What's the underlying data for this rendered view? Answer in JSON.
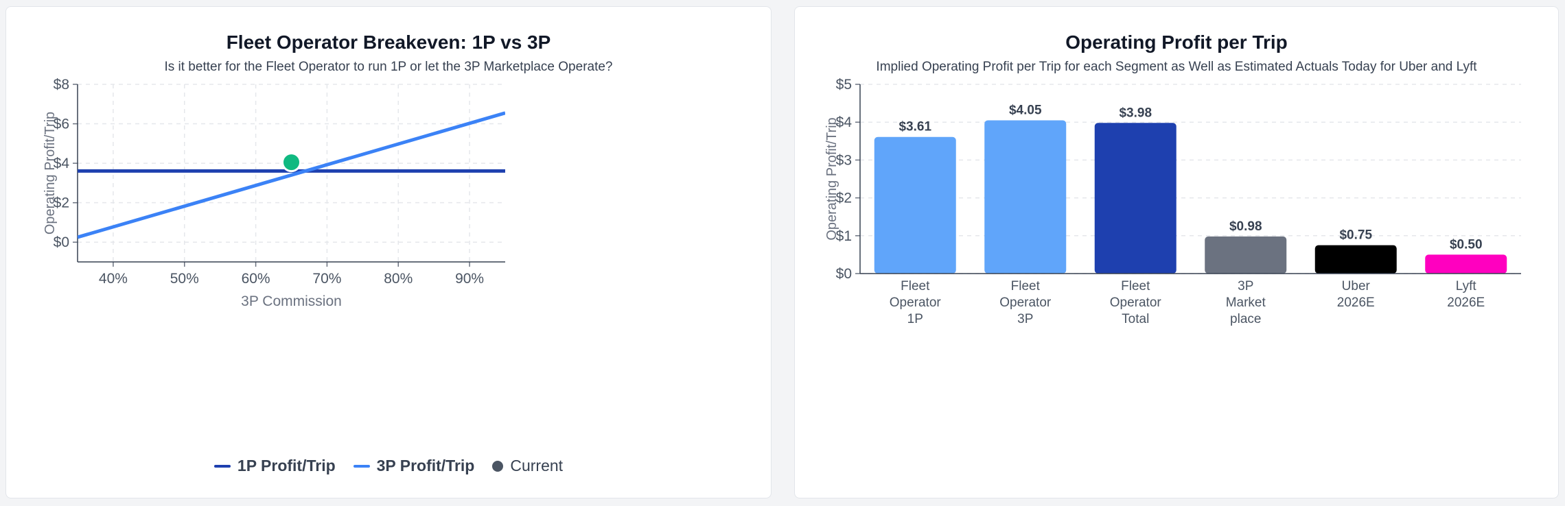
{
  "colors": {
    "one_p": "#1e40af",
    "three_p": "#3b82f6",
    "current": "#10b981",
    "current_legend": "#4b5563",
    "bar_fleet_1p": "#60a5fa",
    "bar_fleet_3p": "#60a5fa",
    "bar_fleet_total": "#1e40af",
    "bar_marketplace": "#6b7280",
    "bar_uber": "#000000",
    "bar_lyft": "#ff00bf"
  },
  "left_panel": {
    "title": "Fleet Operator Breakeven: 1P vs 3P",
    "subtitle": "Is it better for the Fleet Operator to run 1P or let the 3P Marketplace Operate?",
    "legend": {
      "one_p": "1P Profit/Trip",
      "three_p": "3P Profit/Trip",
      "current": "Current"
    }
  },
  "right_panel": {
    "title": "Operating Profit per Trip",
    "subtitle": "Implied Operating Profit per Trip for each Segment as Well as Estimated Actuals Today for Uber and Lyft"
  },
  "chart_data": [
    {
      "type": "line",
      "title": "Fleet Operator Breakeven: 1P vs 3P",
      "xlabel": "3P Commission",
      "ylabel": "Operating Profit/Trip",
      "xlim": [
        35,
        95
      ],
      "ylim": [
        -1,
        8
      ],
      "x_ticks": [
        40,
        50,
        60,
        70,
        80,
        90
      ],
      "x_tick_labels": [
        "40%",
        "50%",
        "60%",
        "70%",
        "80%",
        "90%"
      ],
      "y_ticks": [
        0,
        2,
        4,
        6,
        8
      ],
      "y_tick_labels": [
        "$0",
        "$2",
        "$4",
        "$6",
        "$8"
      ],
      "grid": true,
      "legend_position": "bottom",
      "series": [
        {
          "name": "1P Profit/Trip",
          "x": [
            35,
            95
          ],
          "y": [
            3.61,
            3.61
          ]
        },
        {
          "name": "3P Profit/Trip",
          "x": [
            35,
            95
          ],
          "y": [
            0.25,
            6.55
          ]
        }
      ],
      "points": [
        {
          "name": "Current",
          "x": 65,
          "y": 4.05
        }
      ]
    },
    {
      "type": "bar",
      "title": "Operating Profit per Trip",
      "ylabel": "Operating Profit/Trip",
      "ylim": [
        0,
        5
      ],
      "y_ticks": [
        0,
        1,
        2,
        3,
        4,
        5
      ],
      "y_tick_labels": [
        "$0",
        "$1",
        "$2",
        "$3",
        "$4",
        "$5"
      ],
      "grid": true,
      "categories": [
        [
          "Fleet",
          "Operator",
          "1P"
        ],
        [
          "Fleet",
          "Operator",
          "3P"
        ],
        [
          "Fleet",
          "Operator",
          "Total"
        ],
        [
          "3P",
          "Market",
          "place"
        ],
        [
          "Uber",
          "2026E"
        ],
        [
          "Lyft",
          "2026E"
        ]
      ],
      "values": [
        3.61,
        4.05,
        3.98,
        0.98,
        0.75,
        0.5
      ],
      "value_labels": [
        "$3.61",
        "$4.05",
        "$3.98",
        "$0.98",
        "$0.75",
        "$0.50"
      ]
    }
  ]
}
